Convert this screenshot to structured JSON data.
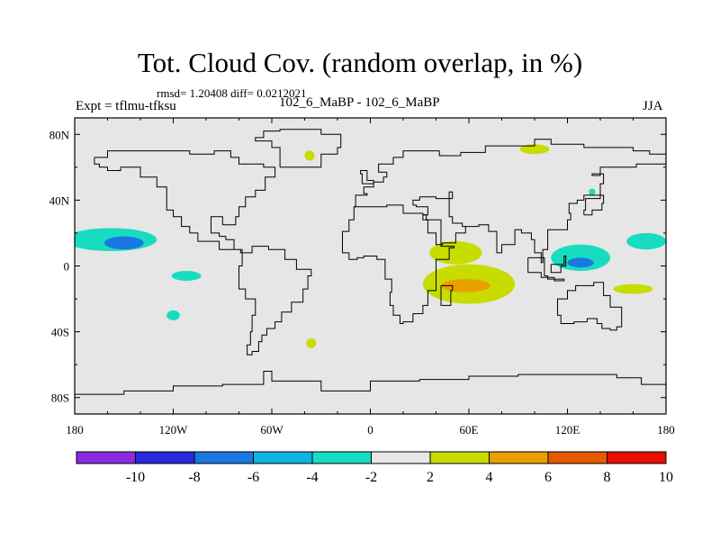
{
  "header": {
    "title": "Tot. Cloud Cov. (random overlap, in %)",
    "stats": "rmsd= 1.20408  diff= 0.0212021",
    "left_label": "Expt = tflmu-tfksu",
    "center_label": "102_6_MaBP - 102_6_MaBP",
    "right_label": "JJA"
  },
  "chart_data": {
    "type": "heatmap",
    "title": "Tot. Cloud Cov. (random overlap, in %)",
    "xlabel": "",
    "ylabel": "",
    "xlim": [
      -180,
      180
    ],
    "ylim": [
      -90,
      90
    ],
    "x_ticks": [
      {
        "value": -180,
        "label": "180"
      },
      {
        "value": -120,
        "label": "120W"
      },
      {
        "value": -60,
        "label": "60W"
      },
      {
        "value": 0,
        "label": "0"
      },
      {
        "value": 60,
        "label": "60E"
      },
      {
        "value": 120,
        "label": "120E"
      },
      {
        "value": 180,
        "label": "180"
      }
    ],
    "y_ticks": [
      {
        "value": 80,
        "label": "80N"
      },
      {
        "value": 40,
        "label": "40N"
      },
      {
        "value": 0,
        "label": "0"
      },
      {
        "value": -40,
        "label": "40S"
      },
      {
        "value": -80,
        "label": "80S"
      }
    ],
    "colorbar": {
      "colors": [
        "#8a2be2",
        "#2a2ae0",
        "#1a78e0",
        "#10b4e0",
        "#18dcc0",
        "#e6e6e6",
        "#c8dc00",
        "#e8a000",
        "#e85a00",
        "#e81000"
      ],
      "labels": [
        "-10",
        "-8",
        "-6",
        "-4",
        "-2",
        "2",
        "4",
        "6",
        "8",
        "10"
      ]
    },
    "background_level": "-2 to 2",
    "anomalies": [
      {
        "lon": -158,
        "lat": 16,
        "level": "-4 to -2",
        "dlon": 28,
        "dlat": 7
      },
      {
        "lon": -150,
        "lat": 14,
        "level": "-6 to -4",
        "dlon": 12,
        "dlat": 4
      },
      {
        "lon": -112,
        "lat": -6,
        "level": "-4 to -2",
        "dlon": 9,
        "dlat": 3
      },
      {
        "lon": -120,
        "lat": -30,
        "level": "-4 to -2",
        "dlon": 4,
        "dlat": 3
      },
      {
        "lon": 52,
        "lat": 8,
        "level": "2 to 4",
        "dlon": 16,
        "dlat": 7
      },
      {
        "lon": 60,
        "lat": -11,
        "level": "2 to 4",
        "dlon": 28,
        "dlat": 12
      },
      {
        "lon": 58,
        "lat": -12,
        "level": "4 to 6",
        "dlon": 15,
        "dlat": 4
      },
      {
        "lon": 128,
        "lat": 5,
        "level": "-4 to -2",
        "dlon": 18,
        "dlat": 8
      },
      {
        "lon": 128,
        "lat": 2,
        "level": "-6 to -4",
        "dlon": 8,
        "dlat": 3
      },
      {
        "lon": 168,
        "lat": 15,
        "level": "-4 to -2",
        "dlon": 12,
        "dlat": 5
      },
      {
        "lon": 160,
        "lat": -14,
        "level": "2 to 4",
        "dlon": 12,
        "dlat": 3
      },
      {
        "lon": 100,
        "lat": 71,
        "level": "2 to 4",
        "dlon": 9,
        "dlat": 3
      },
      {
        "lon": -37,
        "lat": 67,
        "level": "2 to 4",
        "dlon": 3,
        "dlat": 3
      },
      {
        "lon": -36,
        "lat": -47,
        "level": "2 to 4",
        "dlon": 3,
        "dlat": 3
      },
      {
        "lon": 135,
        "lat": 45,
        "level": "-4 to -2",
        "dlon": 2,
        "dlat": 2
      }
    ],
    "grid": false,
    "legend": "bottom colorbar"
  }
}
